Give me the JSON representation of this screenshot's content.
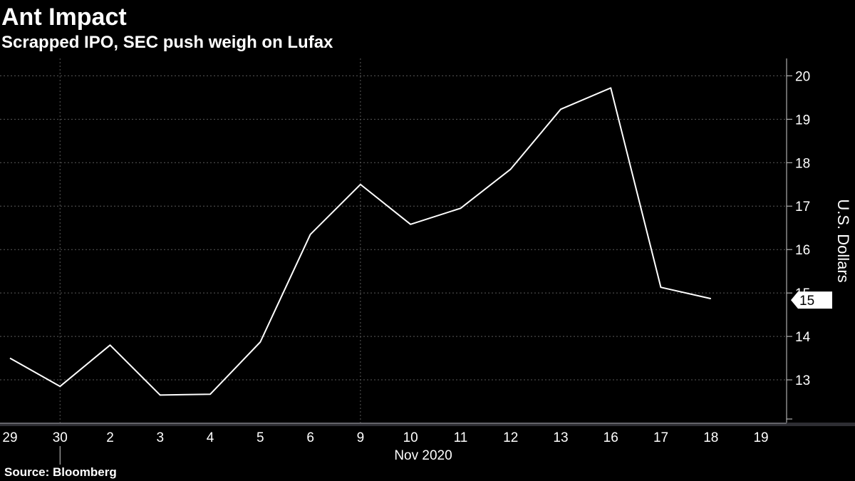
{
  "chart_data": {
    "type": "line",
    "title": "Ant Impact",
    "subtitle": "Scrapped IPO, SEC push weigh on Lufax",
    "source": "Source: Bloomberg",
    "xlabel": "Nov 2020",
    "ylabel": "U.S. Dollars",
    "x": [
      "29",
      "30",
      "2",
      "3",
      "4",
      "5",
      "6",
      "9",
      "10",
      "11",
      "12",
      "13",
      "16",
      "17",
      "18"
    ],
    "x_ticks": [
      "29",
      "30",
      "2",
      "3",
      "4",
      "5",
      "6",
      "9",
      "10",
      "11",
      "12",
      "13",
      "16",
      "17",
      "18",
      "19"
    ],
    "series": [
      {
        "values": [
          13.5,
          12.85,
          13.8,
          12.65,
          12.67,
          13.87,
          16.35,
          17.5,
          16.58,
          16.95,
          17.85,
          19.23,
          19.72,
          15.13,
          14.87
        ]
      }
    ],
    "y_ticks": [
      13,
      14,
      15,
      16,
      17,
      18,
      19,
      20
    ],
    "ylim": [
      12,
      20.4
    ],
    "last_value_label": "15",
    "grid": true,
    "colors": {
      "background": "#000000",
      "line": "#ffffff",
      "grid": "#5a5a5a"
    }
  }
}
